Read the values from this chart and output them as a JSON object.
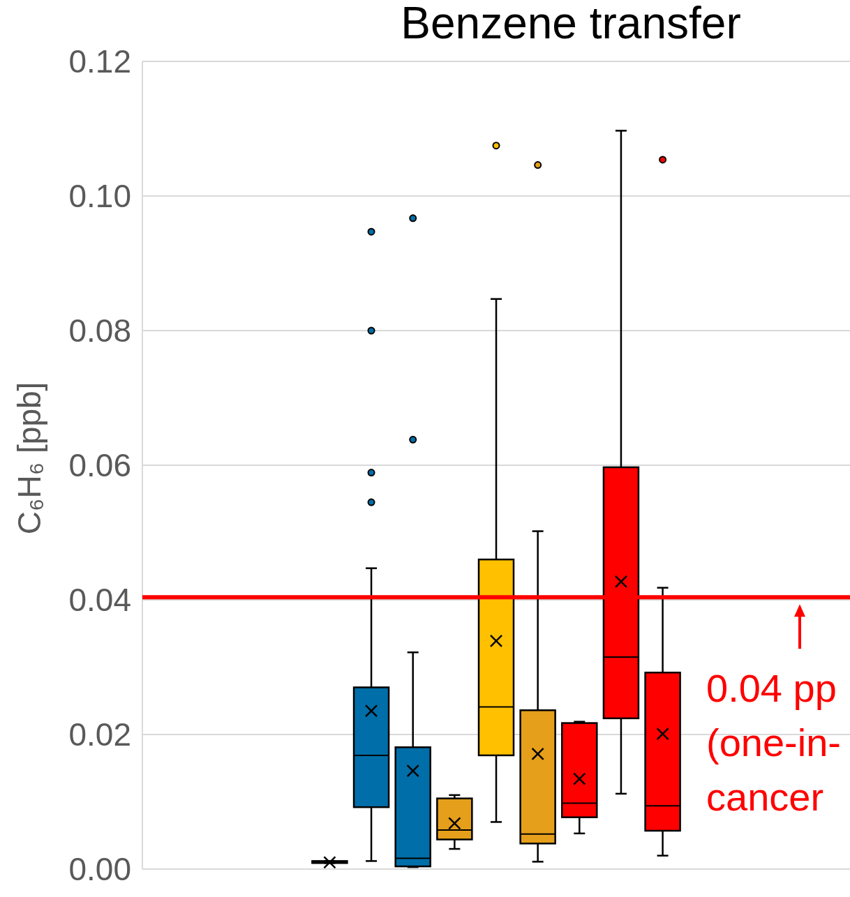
{
  "chart_data": {
    "type": "box",
    "title": "Benzene transfer",
    "ylabel": "C₆H₆ [ppb]",
    "categories": [
      null,
      null,
      null,
      null,
      null,
      null,
      null,
      null,
      null,
      null,
      null,
      null,
      null,
      null,
      null,
      null,
      null
    ],
    "boxes": [
      null,
      null,
      null,
      null,
      {
        "low": 0.0009,
        "q1": 0.0009,
        "median": 0.001,
        "q3": 0.0012,
        "high": 0.0012,
        "mean": 0.001
      },
      {
        "low": 0.0012,
        "q1": 0.0092,
        "median": 0.0169,
        "q3": 0.027,
        "high": 0.0447,
        "mean": 0.0235,
        "outliers": [
          0.0947,
          0.08,
          0.0589,
          0.0545
        ]
      },
      {
        "low": 0.0003,
        "q1": 0.0004,
        "median": 0.0016,
        "q3": 0.0181,
        "high": 0.0322,
        "mean": 0.0146,
        "outliers": [
          0.0967,
          0.0638
        ]
      },
      {
        "low": 0.003,
        "q1": 0.0044,
        "median": 0.0058,
        "q3": 0.0105,
        "high": 0.011,
        "mean": 0.0068
      },
      {
        "low": 0.007,
        "q1": 0.0169,
        "median": 0.0241,
        "q3": 0.046,
        "high": 0.0847,
        "mean": 0.0339,
        "outliers": [
          0.1075
        ]
      },
      {
        "low": 0.0011,
        "q1": 0.0038,
        "median": 0.0052,
        "q3": 0.0236,
        "high": 0.0502,
        "mean": 0.0171,
        "outliers": [
          0.1046
        ]
      },
      {
        "low": 0.0053,
        "q1": 0.0077,
        "median": 0.0098,
        "q3": 0.0217,
        "high": 0.0219,
        "mean": 0.0134
      },
      {
        "low": 0.0112,
        "q1": 0.0224,
        "median": 0.0315,
        "q3": 0.0597,
        "high": 0.1097,
        "mean": 0.0427
      },
      {
        "low": 0.002,
        "q1": 0.0057,
        "median": 0.0094,
        "q3": 0.0292,
        "high": 0.0418,
        "mean": 0.0201,
        "outliers": [
          0.1054
        ]
      },
      null,
      null,
      null,
      null
    ],
    "colors": [
      null,
      null,
      null,
      null,
      "#000000",
      "#006ea8",
      "#006ea8",
      "#e69f1a",
      "#ffc000",
      "#e69f1a",
      "#ff0000",
      "#ff0000",
      "#ff0000",
      null,
      null,
      null,
      null
    ],
    "ylim": [
      0,
      0.12
    ],
    "yticks": [
      {
        "value": 0,
        "label": "0.00"
      },
      {
        "value": 0.02,
        "label": "0.02"
      },
      {
        "value": 0.04,
        "label": "0.04"
      },
      {
        "value": 0.06,
        "label": "0.06"
      },
      {
        "value": 0.08,
        "label": "0.08"
      },
      {
        "value": 0.1,
        "label": "0.10"
      },
      {
        "value": 0.12,
        "label": "0.12"
      }
    ],
    "grid": "y",
    "ref_lines": [
      {
        "axis": "y",
        "value": 0.0404,
        "label": "0.04 pp\n(one-in-\ncancer",
        "color": "#ff0000"
      }
    ]
  }
}
